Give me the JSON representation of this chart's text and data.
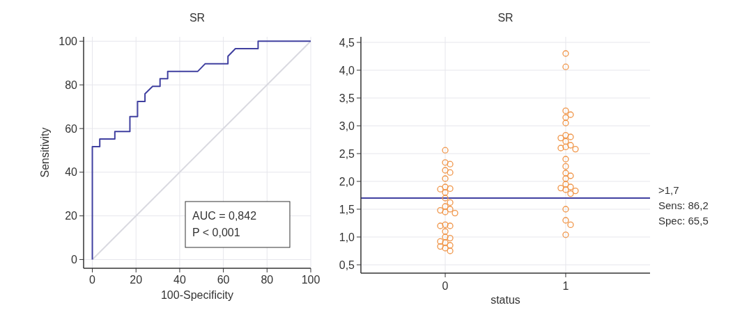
{
  "chart_data": [
    {
      "type": "line",
      "title": "SR",
      "xlabel": "100-Specificity",
      "ylabel": "Sensitivity",
      "xlim": [
        -4,
        100
      ],
      "ylim": [
        -4,
        102
      ],
      "xticks": [
        0,
        20,
        40,
        60,
        80,
        100
      ],
      "yticks": [
        0,
        20,
        40,
        60,
        80,
        100
      ],
      "grid": true,
      "marker": "none",
      "line_style": "solid",
      "series": [
        {
          "color": "#d9d9e0",
          "x": [
            0,
            100
          ],
          "values": [
            0,
            100
          ]
        },
        {
          "color": "#4040a0",
          "x": [
            0,
            0,
            3.4,
            3.4,
            10.3,
            10.3,
            17.2,
            17.2,
            20.7,
            20.7,
            24.1,
            24.1,
            27.6,
            31,
            31,
            34.5,
            34.5,
            48.3,
            51.7,
            62.1,
            62.1,
            65.5,
            75.9,
            75.9,
            100
          ],
          "values": [
            0,
            51.7,
            51.7,
            55.2,
            55.2,
            58.6,
            58.6,
            65.5,
            65.5,
            72.4,
            72.4,
            75.9,
            79.3,
            79.3,
            82.8,
            82.8,
            86.2,
            86.2,
            89.7,
            89.7,
            93.1,
            96.6,
            96.6,
            100,
            100
          ]
        }
      ],
      "annotations": [
        "AUC = 0,842",
        "P < 0,001"
      ]
    },
    {
      "type": "scatter",
      "title": "SR",
      "xlabel": "status",
      "categories": [
        "0",
        "1"
      ],
      "ylim": [
        0.35,
        4.6
      ],
      "yticks": [
        {
          "value": 0.5,
          "label": "0,5"
        },
        {
          "value": 1,
          "label": "1,0"
        },
        {
          "value": 1.5,
          "label": "1,5"
        },
        {
          "value": 2,
          "label": "2,0"
        },
        {
          "value": 2.5,
          "label": "2,5"
        },
        {
          "value": 3,
          "label": "3,0"
        },
        {
          "value": 3.5,
          "label": "3,5"
        },
        {
          "value": 4,
          "label": "4,0"
        },
        {
          "value": 4.5,
          "label": "4,5"
        }
      ],
      "grid": true,
      "marker": "circle",
      "series": [
        {
          "color": "#f0964a",
          "x": [
            "0",
            "0",
            "0",
            "0",
            "0",
            "0",
            "0",
            "0",
            "0",
            "0",
            "0",
            "0",
            "0",
            "0",
            "0",
            "0",
            "0",
            "0",
            "0",
            "0",
            "0",
            "0",
            "0",
            "0",
            "0",
            "0",
            "0",
            "0",
            "0"
          ],
          "values": [
            2.56,
            2.34,
            2.31,
            2.2,
            2.16,
            2.05,
            1.9,
            1.87,
            1.86,
            1.8,
            1.7,
            1.62,
            1.55,
            1.5,
            1.48,
            1.45,
            1.43,
            1.22,
            1.2,
            1.2,
            1.1,
            1.0,
            0.98,
            0.92,
            0.9,
            0.85,
            0.83,
            0.8,
            0.75
          ]
        },
        {
          "color": "#f0964a",
          "x": [
            "1",
            "1",
            "1",
            "1",
            "1",
            "1",
            "1",
            "1",
            "1",
            "1",
            "1",
            "1",
            "1",
            "1",
            "1",
            "1",
            "1",
            "1",
            "1",
            "1",
            "1",
            "1",
            "1",
            "1",
            "1",
            "1",
            "1",
            "1",
            "1"
          ],
          "values": [
            4.3,
            4.06,
            3.27,
            3.2,
            3.15,
            3.05,
            2.83,
            2.8,
            2.78,
            2.72,
            2.65,
            2.62,
            2.6,
            2.58,
            2.4,
            2.27,
            2.15,
            2.1,
            2.05,
            1.95,
            1.9,
            1.88,
            1.85,
            1.83,
            1.78,
            1.5,
            1.3,
            1.22,
            1.04
          ]
        }
      ],
      "ref_lines": [
        {
          "axis": "y",
          "value": 1.7,
          "label": ">1,7",
          "color": "#4040a0"
        }
      ],
      "annotations": [
        "Sens: 86,2",
        "Spec: 65,5"
      ]
    }
  ]
}
